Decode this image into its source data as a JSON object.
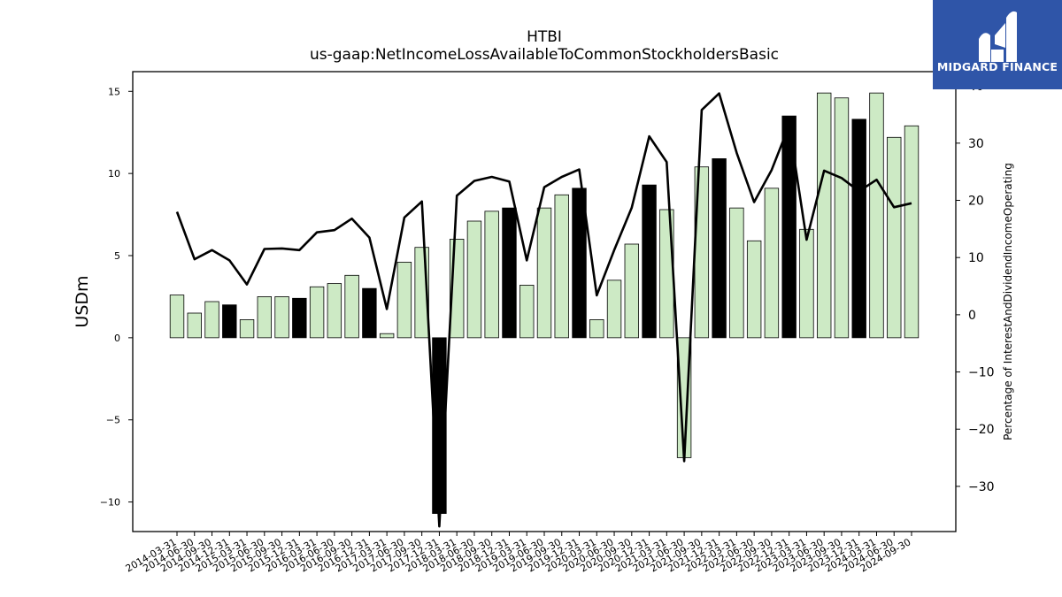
{
  "chart_data": {
    "type": "bar",
    "title": "HTBI",
    "subtitle": "us-gaap:NetIncomeLossAvailableToCommonStockholdersBasic",
    "ylabel": "USDm",
    "y2label": "Percentage of InterestAndDividendIncomeOperating",
    "ylim": [
      -11.8,
      16.2
    ],
    "y2lim": [
      -37.9,
      42.5
    ],
    "yticks": [
      -10,
      -5,
      0,
      5,
      10,
      15
    ],
    "y2ticks": [
      -30,
      -20,
      -10,
      0,
      10,
      20,
      30,
      40
    ],
    "categories": [
      "2014-03-31",
      "2014-06-30",
      "2014-09-30",
      "2014-12-31",
      "2015-03-31",
      "2015-06-30",
      "2015-09-30",
      "2015-12-31",
      "2016-03-31",
      "2016-06-30",
      "2016-09-30",
      "2016-12-31",
      "2017-03-31",
      "2017-06-30",
      "2017-09-30",
      "2017-12-31",
      "2018-03-31",
      "2018-06-30",
      "2018-09-30",
      "2018-12-31",
      "2019-03-31",
      "2019-06-30",
      "2019-09-30",
      "2019-12-31",
      "2020-03-31",
      "2020-06-30",
      "2020-09-30",
      "2020-12-31",
      "2021-03-31",
      "2021-06-30",
      "2021-09-30",
      "2021-12-31",
      "2022-03-31",
      "2022-06-30",
      "2022-09-30",
      "2022-12-31",
      "2023-03-31",
      "2023-06-30",
      "2023-09-30",
      "2023-12-31",
      "2024-03-31",
      "2024-06-30",
      "2024-09-30"
    ],
    "series": [
      {
        "type": "bar",
        "axis": "left",
        "values": [
          2.6,
          1.5,
          2.2,
          2.0,
          1.1,
          2.5,
          2.5,
          2.4,
          3.1,
          3.3,
          3.8,
          3.0,
          0.25,
          4.6,
          5.5,
          -10.7,
          6.0,
          7.1,
          7.7,
          7.9,
          3.2,
          7.9,
          8.7,
          9.1,
          1.1,
          3.5,
          5.7,
          9.3,
          7.8,
          -7.3,
          10.4,
          10.9,
          7.9,
          5.9,
          9.1,
          13.5,
          6.6,
          14.9,
          14.6,
          13.3,
          14.9,
          12.2,
          12.9
        ],
        "highlight": [
          false,
          false,
          false,
          true,
          false,
          false,
          false,
          true,
          false,
          false,
          false,
          true,
          false,
          false,
          false,
          true,
          false,
          false,
          false,
          true,
          false,
          false,
          false,
          true,
          false,
          false,
          false,
          true,
          false,
          false,
          false,
          true,
          false,
          false,
          false,
          true,
          false,
          false,
          false,
          true,
          false,
          false,
          false
        ]
      },
      {
        "type": "line",
        "axis": "right",
        "values": [
          18,
          9.7,
          11.3,
          9.5,
          5.3,
          11.5,
          11.6,
          11.3,
          14.4,
          14.8,
          16.8,
          13.5,
          1.0,
          17.0,
          19.8,
          -37,
          20.8,
          23.4,
          24.1,
          23.3,
          9.5,
          22.3,
          24.1,
          25.4,
          3.4,
          11.3,
          18.7,
          31.2,
          26.7,
          -25.6,
          35.8,
          38.7,
          28.3,
          19.7,
          25.3,
          33.1,
          13.1,
          25.2,
          23.9,
          21.6,
          23.6,
          18.8,
          19.5
        ]
      }
    ],
    "colors": {
      "bar": "#cdeac5",
      "bar_highlight": "#000000",
      "line": "#000000",
      "edge": "#000000"
    },
    "grid": false
  },
  "logo": {
    "text": "MIDGARD FINANCE"
  }
}
